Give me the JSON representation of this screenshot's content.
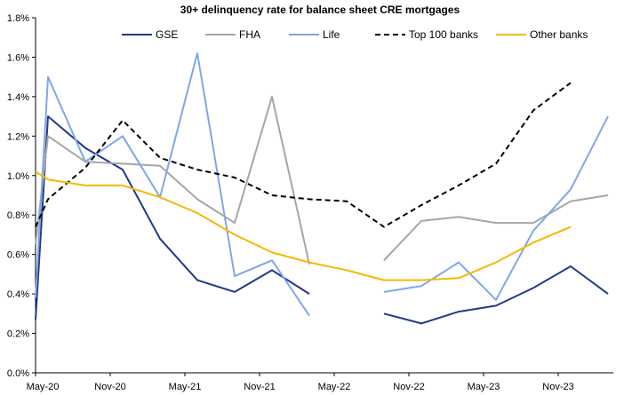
{
  "chart_data": {
    "type": "line",
    "title": "30+ delinquency rate for balance sheet CRE  mortgages",
    "xlabel": "",
    "ylabel": "",
    "ylim": [
      0,
      1.8
    ],
    "y_ticks": [
      "0.0%",
      "0.2%",
      "0.4%",
      "0.6%",
      "0.8%",
      "1.0%",
      "1.2%",
      "1.4%",
      "1.6%",
      "1.8%"
    ],
    "x_ticks": [
      "May-20",
      "Nov-20",
      "May-21",
      "Nov-21",
      "May-22",
      "Nov-22",
      "May-23",
      "Nov-23"
    ],
    "x_tick_positions": [
      0,
      6,
      12,
      18,
      24,
      30,
      36,
      42
    ],
    "x_range": [
      0,
      46
    ],
    "legend_position": "top",
    "grid": false,
    "series": [
      {
        "name": "GSE",
        "color": "#1F3A8A",
        "dash": "",
        "points": [
          [
            0,
            0.27
          ],
          [
            1,
            1.3
          ],
          [
            4,
            1.14
          ],
          [
            7,
            1.03
          ],
          [
            10,
            0.68
          ],
          [
            13,
            0.47
          ],
          [
            16,
            0.41
          ],
          [
            19,
            0.52
          ],
          [
            22,
            0.4
          ],
          null,
          [
            28,
            0.3
          ],
          [
            31,
            0.25
          ],
          [
            34,
            0.31
          ],
          [
            37,
            0.34
          ],
          [
            40,
            0.43
          ],
          [
            43,
            0.54
          ],
          [
            46,
            0.4
          ]
        ]
      },
      {
        "name": "FHA",
        "color": "#A6A6A6",
        "dash": "",
        "points": [
          [
            0,
            0.65
          ],
          [
            1,
            1.2
          ],
          [
            4,
            1.07
          ],
          [
            7,
            1.06
          ],
          [
            10,
            1.05
          ],
          [
            13,
            0.88
          ],
          [
            16,
            0.76
          ],
          [
            19,
            1.4
          ],
          [
            22,
            0.55
          ],
          null,
          [
            28,
            0.57
          ],
          [
            31,
            0.77
          ],
          [
            34,
            0.79
          ],
          [
            37,
            0.76
          ],
          [
            40,
            0.76
          ],
          [
            43,
            0.87
          ],
          [
            46,
            0.9
          ]
        ]
      },
      {
        "name": "Life",
        "color": "#7FA7E6",
        "dash": "",
        "points": [
          [
            0,
            0.38
          ],
          [
            1,
            1.5
          ],
          [
            4,
            1.07
          ],
          [
            7,
            1.2
          ],
          [
            10,
            0.89
          ],
          [
            13,
            1.62
          ],
          [
            16,
            0.49
          ],
          [
            19,
            0.57
          ],
          [
            22,
            0.29
          ],
          null,
          [
            28,
            0.41
          ],
          [
            31,
            0.44
          ],
          [
            34,
            0.56
          ],
          [
            37,
            0.37
          ],
          [
            40,
            0.72
          ],
          [
            43,
            0.93
          ],
          [
            46,
            1.3
          ]
        ]
      },
      {
        "name": "Top 100 banks",
        "color": "#000000",
        "dash": "6,4",
        "points": [
          [
            0,
            0.74
          ],
          [
            1,
            0.88
          ],
          [
            4,
            1.04
          ],
          [
            7,
            1.28
          ],
          [
            10,
            1.09
          ],
          [
            13,
            1.03
          ],
          [
            16,
            0.99
          ],
          [
            19,
            0.9
          ],
          [
            22,
            0.88
          ],
          [
            25,
            0.87
          ],
          [
            28,
            0.74
          ],
          [
            31,
            0.85
          ],
          [
            34,
            0.95
          ],
          [
            37,
            1.06
          ],
          [
            40,
            1.33
          ],
          [
            43,
            1.47
          ]
        ]
      },
      {
        "name": "Other banks",
        "color": "#F5B800",
        "dash": "",
        "points": [
          [
            0,
            1.02
          ],
          [
            1,
            0.98
          ],
          [
            4,
            0.95
          ],
          [
            7,
            0.95
          ],
          [
            10,
            0.89
          ],
          [
            13,
            0.81
          ],
          [
            16,
            0.7
          ],
          [
            19,
            0.61
          ],
          [
            22,
            0.56
          ],
          [
            25,
            0.52
          ],
          [
            28,
            0.47
          ],
          [
            31,
            0.47
          ],
          [
            34,
            0.48
          ],
          [
            37,
            0.56
          ],
          [
            40,
            0.66
          ],
          [
            43,
            0.74
          ]
        ]
      }
    ]
  }
}
